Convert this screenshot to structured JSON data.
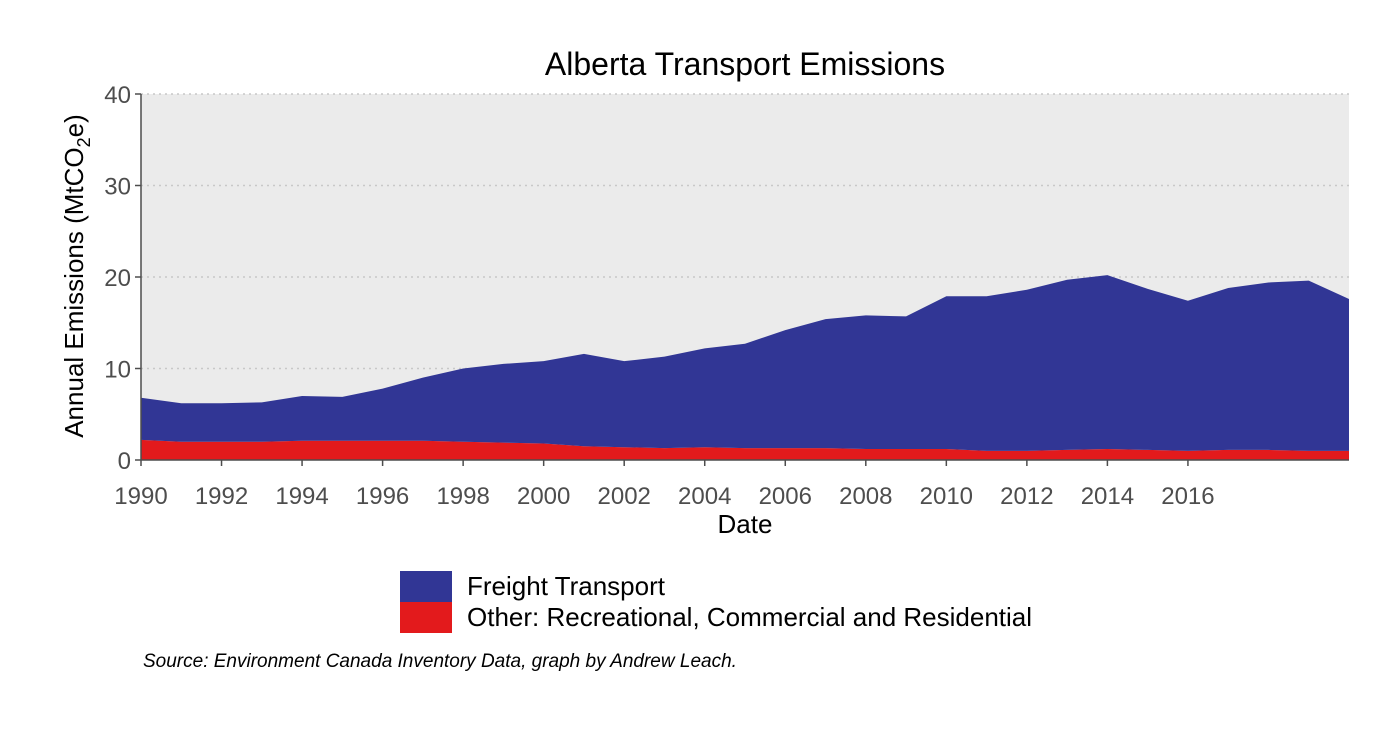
{
  "chart_data": {
    "type": "area",
    "stacked": true,
    "title": "Alberta Transport Emissions",
    "xlabel": "Date",
    "ylabel": "Annual Emissions (MtCO",
    "ylabel_subscript": "2",
    "ylabel_suffix": "e)",
    "x": [
      1990,
      1991,
      1992,
      1993,
      1994,
      1995,
      1996,
      1997,
      1998,
      1999,
      2000,
      2001,
      2002,
      2003,
      2004,
      2005,
      2006,
      2007,
      2008,
      2009,
      2010,
      2011,
      2012,
      2013,
      2014,
      2015,
      2016,
      2017,
      2018,
      2019,
      2020
    ],
    "xlim": [
      1990,
      2020
    ],
    "x_ticks": [
      1990,
      1992,
      1994,
      1996,
      1998,
      2000,
      2002,
      2004,
      2006,
      2008,
      2010,
      2012,
      2014,
      2016
    ],
    "ylim": [
      0,
      40
    ],
    "y_ticks": [
      0,
      10,
      20,
      30,
      40
    ],
    "grid": "horizontal-dotted",
    "legend_position": "bottom",
    "series": [
      {
        "name": "Other: Recreational, Commercial and Residential",
        "color": "#e31a1c",
        "values": [
          2.2,
          2.0,
          2.0,
          2.0,
          2.1,
          2.1,
          2.1,
          2.1,
          2.0,
          1.9,
          1.8,
          1.5,
          1.4,
          1.3,
          1.4,
          1.3,
          1.3,
          1.3,
          1.2,
          1.2,
          1.2,
          1.0,
          1.0,
          1.1,
          1.2,
          1.1,
          1.0,
          1.1,
          1.1,
          1.0,
          1.0
        ]
      },
      {
        "name": "Freight Transport",
        "color": "#313695",
        "values": [
          4.6,
          4.2,
          4.2,
          4.3,
          4.9,
          4.8,
          5.7,
          6.9,
          8.0,
          8.6,
          9.0,
          10.1,
          9.4,
          10.0,
          10.8,
          11.4,
          12.9,
          14.1,
          14.6,
          14.5,
          16.7,
          16.9,
          17.6,
          18.6,
          19.0,
          17.6,
          16.4,
          17.7,
          18.3,
          18.6,
          16.6
        ]
      }
    ],
    "caption": "Source: Environment Canada Inventory Data, graph by Andrew Leach."
  },
  "colors": {
    "panel_background": "#ebebeb",
    "gridline": "#c8c8c8",
    "axis": "#4d4d4d"
  }
}
